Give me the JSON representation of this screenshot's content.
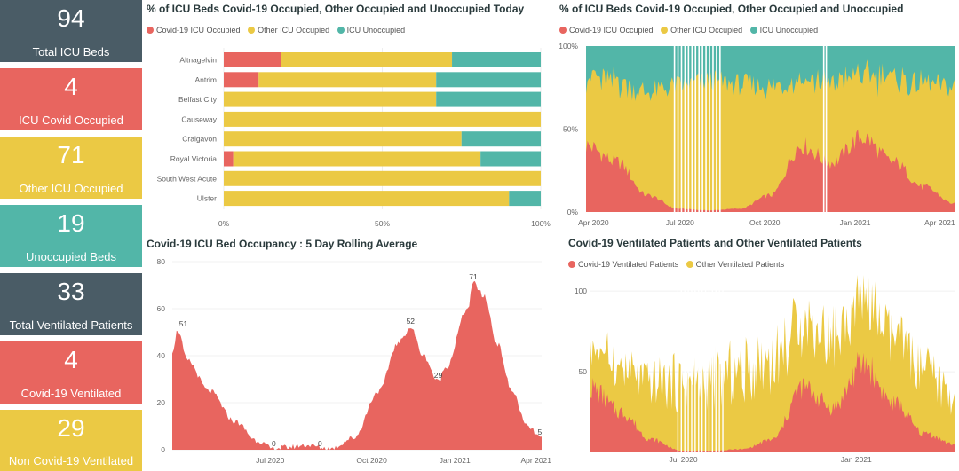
{
  "colors": {
    "covid": "#e8655f",
    "other": "#ebc944",
    "unoccupied": "#52b6a8",
    "dark": "#4a5c66"
  },
  "kpis": [
    {
      "value": "94",
      "label": "Total ICU Beds",
      "color": "#4a5c66"
    },
    {
      "value": "4",
      "label": "ICU Covid Occupied",
      "color": "#e8655f"
    },
    {
      "value": "71",
      "label": "Other ICU Occupied",
      "color": "#ebc944"
    },
    {
      "value": "19",
      "label": "Unoccupied Beds",
      "color": "#52b6a8"
    },
    {
      "value": "33",
      "label": "Total Ventilated Patients",
      "color": "#4a5c66"
    },
    {
      "value": "4",
      "label": "Covid-19 Ventilated",
      "color": "#e8655f"
    },
    {
      "value": "29",
      "label": "Non Covid-19 Ventilated",
      "color": "#ebc944"
    }
  ],
  "today": {
    "title": "% of ICU Beds Covid-19 Occupied, Other Occupied and Unoccupied Today",
    "legend": [
      "Covid-19 ICU Occupied",
      "Other ICU Occupied",
      "ICU Unoccupied"
    ]
  },
  "history": {
    "title": "% of ICU Beds Covid-19 Occupied, Other Occupied and Unoccupied",
    "legend": [
      "Covid-19 ICU Occupied",
      "Other ICU Occupied",
      "ICU Unoccupied"
    ]
  },
  "rolling": {
    "title": "Covid-19 ICU Bed Occupancy : 5 Day Rolling Average"
  },
  "ventilated": {
    "title": "Covid-19 Ventilated Patients and Other Ventilated Patients",
    "legend": [
      "Covid-19 Ventilated Patients",
      "Other Ventilated Patients"
    ]
  },
  "chart_data": [
    {
      "type": "bar",
      "stacked": true,
      "orientation": "horizontal",
      "categories": [
        "Altnagelvin",
        "Antrim",
        "Belfast City",
        "Causeway",
        "Craigavon",
        "Royal Victoria",
        "South West Acute",
        "Ulster"
      ],
      "series": [
        {
          "name": "Covid-19 ICU Occupied",
          "values": [
            18,
            11,
            0,
            0,
            0,
            3,
            0,
            0
          ]
        },
        {
          "name": "Other ICU Occupied",
          "values": [
            54,
            56,
            67,
            100,
            75,
            78,
            100,
            90
          ]
        },
        {
          "name": "ICU Unoccupied",
          "values": [
            28,
            33,
            33,
            0,
            25,
            19,
            0,
            10
          ]
        }
      ],
      "xticks": [
        "0%",
        "50%",
        "100%"
      ],
      "xlim": [
        0,
        100
      ]
    },
    {
      "type": "area",
      "stacked": true,
      "x": [
        "Apr 2020",
        "May 2020",
        "Jun 2020",
        "Jul 2020",
        "Aug 2020",
        "Sep 2020",
        "Oct 2020",
        "Nov 2020",
        "Dec 2020",
        "Jan 2021",
        "Feb 2021",
        "Mar 2021",
        "Apr 2021"
      ],
      "series": [
        {
          "name": "Covid-19 ICU Occupied",
          "values": [
            40,
            30,
            10,
            2,
            1,
            2,
            10,
            40,
            30,
            45,
            30,
            15,
            5
          ]
        },
        {
          "name": "Other ICU Occupied",
          "values": [
            42,
            48,
            62,
            74,
            78,
            75,
            65,
            42,
            48,
            38,
            50,
            62,
            70
          ]
        },
        {
          "name": "ICU Unoccupied",
          "values": [
            18,
            22,
            28,
            24,
            21,
            23,
            25,
            18,
            22,
            17,
            20,
            23,
            25
          ]
        }
      ],
      "xticks": [
        "Apr 2020",
        "Jul 2020",
        "Oct 2020",
        "Jan 2021",
        "Apr 2021"
      ],
      "yticks": [
        "0%",
        "50%",
        "100%"
      ],
      "ylim": [
        0,
        100
      ]
    },
    {
      "type": "area",
      "x": [
        "Apr 2020",
        "Apr 2020",
        "May 2020",
        "Jun 2020",
        "Jul 2020",
        "Aug 2020",
        "Sep 2020",
        "Oct 2020",
        "Nov 2020",
        "Nov 2020",
        "Dec 2020",
        "Jan 2021",
        "Feb 2021",
        "Mar 2021",
        "Apr 2021",
        "Apr 2021"
      ],
      "series": [
        {
          "name": "Covid-19 ICU Occupied",
          "values": [
            42,
            51,
            28,
            8,
            0,
            2,
            0,
            5,
            52,
            40,
            29,
            71,
            40,
            12,
            6,
            5
          ]
        }
      ],
      "labels": [
        {
          "x": "Apr 2020",
          "text": "51"
        },
        {
          "x": "Jul 2020",
          "text": "0"
        },
        {
          "x": "Aug 2020",
          "text": "0"
        },
        {
          "x": "Nov 2020",
          "text": "52"
        },
        {
          "x": "Dec 2020",
          "text": "29"
        },
        {
          "x": "Jan 2021",
          "text": "71"
        },
        {
          "x": "Apr 2021",
          "text": "5"
        }
      ],
      "xticks": [
        "Jul 2020",
        "Oct 2020",
        "Jan 2021",
        "Apr 2021"
      ],
      "yticks": [
        "0",
        "20",
        "40",
        "60",
        "80"
      ],
      "ylim": [
        0,
        80
      ]
    },
    {
      "type": "area",
      "stacked": true,
      "x": [
        "Apr 2020",
        "May 2020",
        "Jun 2020",
        "Jul 2020",
        "Aug 2020",
        "Sep 2020",
        "Oct 2020",
        "Nov 2020",
        "Dec 2020",
        "Jan 2021",
        "Feb 2021",
        "Mar 2021",
        "Apr 2021"
      ],
      "series": [
        {
          "name": "Covid-19 Ventilated Patients",
          "values": [
            40,
            25,
            8,
            1,
            1,
            2,
            8,
            40,
            28,
            55,
            30,
            12,
            5
          ]
        },
        {
          "name": "Other Ventilated Patients",
          "values": [
            25,
            28,
            35,
            42,
            45,
            48,
            50,
            40,
            45,
            40,
            40,
            38,
            30
          ]
        }
      ],
      "xticks": [
        "Jul 2020",
        "Jan 2021"
      ],
      "yticks": [
        "50",
        "100"
      ],
      "ylim": [
        0,
        110
      ]
    }
  ]
}
